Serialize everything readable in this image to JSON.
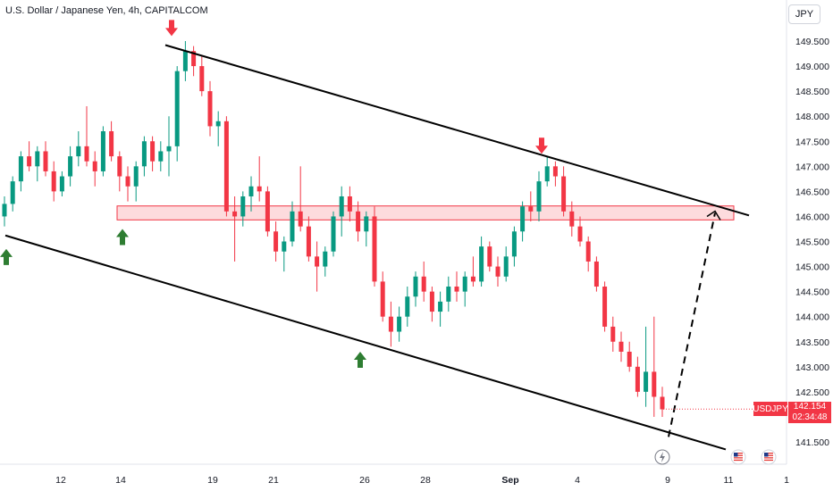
{
  "title": "U.S. Dollar / Japanese Yen, 4h, CAPITALCOM",
  "currency": "JPY",
  "last_price": {
    "symbol": "USDJPY",
    "value": "142.154",
    "countdown": "02:34:48"
  },
  "chart_data": {
    "type": "candlestick",
    "y_ticks": [
      "149.500",
      "149.000",
      "148.500",
      "148.000",
      "147.500",
      "147.000",
      "146.500",
      "146.000",
      "145.500",
      "145.000",
      "144.500",
      "144.000",
      "143.500",
      "143.000",
      "142.500",
      "141.500"
    ],
    "x_ticks": [
      "12",
      "14",
      "19",
      "21",
      "26",
      "28",
      "Sep",
      "4",
      "9",
      "11",
      "1"
    ],
    "ylim": [
      141.3,
      149.8
    ],
    "colors": {
      "up": "#089981",
      "down": "#f23645",
      "zone": "#f23645"
    },
    "resistance_zone": [
      146.02,
      146.12
    ],
    "channel": {
      "upper": [
        [
          185,
          149.42
        ],
        [
          838,
          146.02
        ]
      ],
      "lower": [
        [
          6,
          145.62
        ],
        [
          812,
          141.35
        ]
      ]
    },
    "projection": [
      [
        748,
        141.6
      ],
      [
        800,
        146.07
      ]
    ],
    "arrows": {
      "down": [
        [
          192,
          149.6
        ],
        [
          606,
          147.25
        ]
      ],
      "up": [
        [
          7,
          145.35
        ],
        [
          137,
          145.75
        ],
        [
          403,
          143.3
        ]
      ]
    },
    "candles": [
      [
        0,
        146.0,
        146.4,
        145.8,
        146.25
      ],
      [
        1,
        146.25,
        146.8,
        146.1,
        146.7
      ],
      [
        2,
        146.7,
        147.3,
        146.5,
        147.2
      ],
      [
        3,
        147.2,
        147.5,
        146.9,
        147.0
      ],
      [
        4,
        147.0,
        147.4,
        146.7,
        147.3
      ],
      [
        5,
        147.3,
        147.5,
        146.8,
        146.9
      ],
      [
        6,
        146.9,
        147.1,
        146.3,
        146.5
      ],
      [
        7,
        146.5,
        146.9,
        146.4,
        146.8
      ],
      [
        8,
        146.8,
        147.4,
        146.6,
        147.2
      ],
      [
        9,
        147.2,
        147.7,
        147.0,
        147.4
      ],
      [
        10,
        147.4,
        148.2,
        147.0,
        147.1
      ],
      [
        11,
        147.1,
        147.3,
        146.6,
        146.9
      ],
      [
        12,
        146.9,
        147.8,
        146.8,
        147.7
      ],
      [
        13,
        147.7,
        147.9,
        147.1,
        147.2
      ],
      [
        14,
        147.2,
        147.3,
        146.5,
        146.8
      ],
      [
        15,
        146.8,
        147.0,
        146.3,
        146.6
      ],
      [
        16,
        146.6,
        147.1,
        146.3,
        147.0
      ],
      [
        17,
        147.0,
        147.6,
        146.8,
        147.5
      ],
      [
        18,
        147.5,
        147.6,
        146.9,
        147.1
      ],
      [
        19,
        147.1,
        147.5,
        146.9,
        147.3
      ],
      [
        20,
        147.3,
        148.0,
        146.8,
        147.4
      ],
      [
        21,
        147.4,
        149.0,
        147.1,
        148.9
      ],
      [
        22,
        148.9,
        149.5,
        148.7,
        149.3
      ],
      [
        23,
        149.3,
        149.4,
        148.8,
        149.0
      ],
      [
        24,
        149.0,
        149.2,
        148.4,
        148.5
      ],
      [
        25,
        148.5,
        148.7,
        147.6,
        147.8
      ],
      [
        26,
        147.8,
        148.1,
        147.4,
        147.9
      ],
      [
        27,
        147.9,
        148.0,
        146.0,
        146.1
      ],
      [
        28,
        146.1,
        146.4,
        145.1,
        146.0
      ],
      [
        29,
        146.0,
        146.5,
        145.8,
        146.4
      ],
      [
        30,
        146.4,
        146.8,
        146.1,
        146.6
      ],
      [
        31,
        146.6,
        147.2,
        146.3,
        146.5
      ],
      [
        32,
        146.5,
        146.6,
        145.6,
        145.7
      ],
      [
        33,
        145.7,
        145.9,
        145.1,
        145.3
      ],
      [
        34,
        145.3,
        145.6,
        144.9,
        145.5
      ],
      [
        35,
        145.5,
        146.3,
        145.4,
        146.1
      ],
      [
        36,
        146.1,
        147.0,
        145.7,
        145.8
      ],
      [
        37,
        145.8,
        146.0,
        145.1,
        145.2
      ],
      [
        38,
        145.2,
        145.5,
        144.5,
        145.0
      ],
      [
        39,
        145.0,
        145.4,
        144.8,
        145.3
      ],
      [
        40,
        145.3,
        146.1,
        145.2,
        146.0
      ],
      [
        41,
        146.0,
        146.6,
        145.6,
        146.4
      ],
      [
        42,
        146.4,
        146.6,
        145.9,
        146.1
      ],
      [
        43,
        146.1,
        146.3,
        145.5,
        145.7
      ],
      [
        44,
        145.7,
        146.1,
        145.4,
        146.0
      ],
      [
        45,
        146.0,
        146.2,
        144.6,
        144.7
      ],
      [
        46,
        144.7,
        144.9,
        143.9,
        144.0
      ],
      [
        47,
        144.0,
        144.3,
        143.4,
        143.7
      ],
      [
        48,
        143.7,
        144.2,
        143.5,
        144.0
      ],
      [
        49,
        144.0,
        144.6,
        143.8,
        144.4
      ],
      [
        50,
        144.4,
        144.9,
        144.2,
        144.8
      ],
      [
        51,
        144.8,
        145.1,
        144.3,
        144.5
      ],
      [
        52,
        144.5,
        144.6,
        143.9,
        144.1
      ],
      [
        53,
        144.1,
        144.5,
        143.8,
        144.3
      ],
      [
        54,
        144.3,
        144.8,
        144.1,
        144.6
      ],
      [
        55,
        144.6,
        144.9,
        144.3,
        144.5
      ],
      [
        56,
        144.5,
        144.9,
        144.2,
        144.8
      ],
      [
        57,
        144.8,
        145.2,
        144.6,
        144.7
      ],
      [
        58,
        144.7,
        145.6,
        144.6,
        145.4
      ],
      [
        59,
        145.4,
        145.5,
        144.9,
        145.0
      ],
      [
        60,
        145.0,
        145.2,
        144.6,
        144.8
      ],
      [
        61,
        144.8,
        145.4,
        144.7,
        145.2
      ],
      [
        62,
        145.2,
        145.8,
        145.0,
        145.7
      ],
      [
        63,
        145.7,
        146.3,
        145.5,
        146.2
      ],
      [
        64,
        146.2,
        146.5,
        145.9,
        146.1
      ],
      [
        65,
        146.1,
        146.9,
        145.9,
        146.7
      ],
      [
        66,
        146.7,
        147.2,
        146.6,
        147.0
      ],
      [
        67,
        147.0,
        147.1,
        146.6,
        146.8
      ],
      [
        68,
        146.8,
        147.0,
        146.0,
        146.1
      ],
      [
        69,
        146.1,
        146.3,
        145.6,
        145.8
      ],
      [
        70,
        145.8,
        146.0,
        145.4,
        145.5
      ],
      [
        71,
        145.5,
        145.6,
        144.9,
        145.1
      ],
      [
        72,
        145.1,
        145.2,
        144.5,
        144.6
      ],
      [
        73,
        144.6,
        144.7,
        143.7,
        143.8
      ],
      [
        74,
        143.8,
        144.0,
        143.3,
        143.5
      ],
      [
        75,
        143.5,
        143.7,
        143.1,
        143.3
      ],
      [
        76,
        143.3,
        143.5,
        142.9,
        143.0
      ],
      [
        77,
        143.0,
        143.2,
        142.4,
        142.5
      ],
      [
        78,
        142.5,
        143.8,
        142.2,
        142.9
      ],
      [
        79,
        142.9,
        144.0,
        142.0,
        142.4
      ],
      [
        80,
        142.4,
        142.6,
        142.0,
        142.15
      ]
    ]
  }
}
